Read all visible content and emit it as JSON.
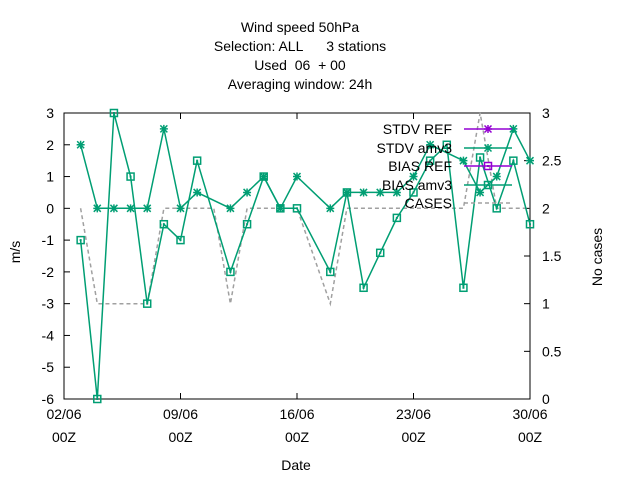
{
  "chart_data": {
    "type": "line",
    "title_lines": [
      "Wind speed 50hPa",
      "Selection: ALL      3 stations",
      "Used  06  + 00",
      "Averaging window: 24h"
    ],
    "xlabel": "Date",
    "ylabel": "m/s",
    "y2label": "No cases",
    "xlim": [
      2,
      30
    ],
    "ylim": [
      -6,
      3
    ],
    "y2lim": [
      0,
      3
    ],
    "x_ticks": [
      {
        "x": 2,
        "l1": "02/06",
        "l2": "00Z"
      },
      {
        "x": 9,
        "l1": "09/06",
        "l2": "00Z"
      },
      {
        "x": 16,
        "l1": "16/06",
        "l2": "00Z"
      },
      {
        "x": 23,
        "l1": "23/06",
        "l2": "00Z"
      },
      {
        "x": 30,
        "l1": "30/06",
        "l2": "00Z"
      }
    ],
    "y_ticks": [
      3,
      2,
      1,
      0,
      -1,
      -2,
      -3,
      -4,
      -5,
      -6
    ],
    "y2_ticks": [
      3,
      2.5,
      2,
      1.5,
      1,
      0.5,
      0
    ],
    "legend_position": "top-right",
    "series": [
      {
        "name": "STDV REF",
        "color": "#9400d3",
        "marker": "star",
        "axis": "y",
        "legend_only": true,
        "x": [],
        "y": []
      },
      {
        "name": "STDV amv3",
        "color": "#009e73",
        "marker": "star",
        "axis": "y",
        "x": [
          3,
          4,
          5,
          6,
          7,
          8,
          9,
          10,
          12,
          13,
          14,
          15,
          16,
          18,
          19,
          20,
          21,
          22,
          23,
          24,
          26,
          27,
          28,
          29,
          30
        ],
        "y": [
          2,
          0,
          0,
          0,
          0,
          2.5,
          0,
          0.5,
          0,
          0.5,
          1,
          0,
          1,
          0,
          0.5,
          0.5,
          0.5,
          0.5,
          1,
          2,
          1.5,
          0.5,
          1,
          2.5,
          1.5
        ]
      },
      {
        "name": "BIAS REF",
        "color": "#9400d3",
        "marker": "square",
        "axis": "y",
        "legend_only": true,
        "x": [],
        "y": []
      },
      {
        "name": "BIAS amv3",
        "color": "#009e73",
        "marker": "square",
        "axis": "y",
        "x": [
          3,
          4,
          5,
          6,
          7,
          8,
          9,
          10,
          12,
          13,
          14,
          15,
          16,
          18,
          19,
          20,
          21,
          22,
          23,
          24,
          25,
          26,
          27,
          28,
          29,
          30
        ],
        "y": [
          -1,
          -6,
          3,
          1,
          -3,
          -0.5,
          -1,
          1.5,
          -2,
          -0.5,
          1,
          0,
          0,
          -2,
          0.5,
          -2.5,
          -1.4,
          -0.3,
          0.5,
          1.5,
          2,
          -2.5,
          1.6,
          0,
          1.5,
          -0.5
        ]
      },
      {
        "name": "CASES",
        "color": "#a0a0a0",
        "marker": "none",
        "dashed": true,
        "axis": "y2",
        "x": [
          3,
          4,
          5,
          6,
          7,
          8,
          9,
          10,
          11,
          12,
          13,
          14,
          15,
          16,
          17,
          18,
          19,
          20,
          21,
          22,
          23,
          24,
          25,
          26,
          27,
          28,
          29,
          30
        ],
        "y": [
          2,
          1,
          1,
          1,
          1,
          2,
          2,
          2,
          2,
          1,
          2,
          2,
          2,
          2,
          1.5,
          1,
          2,
          2,
          2,
          2,
          2,
          2,
          2,
          2,
          3,
          2,
          2,
          2
        ]
      }
    ]
  }
}
